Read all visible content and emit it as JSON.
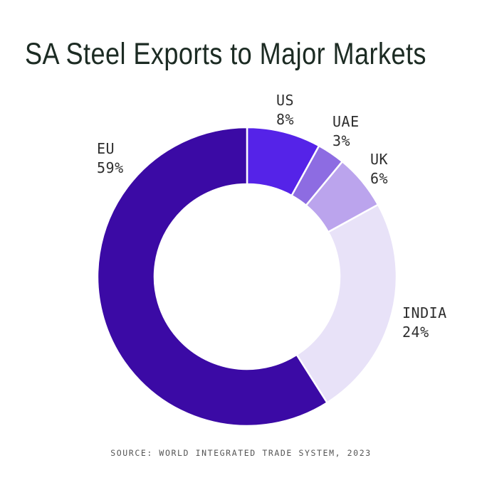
{
  "colors": {
    "background": "#FFFFFF",
    "title_text": "#1C2B23",
    "label_text": "#2E2E2E",
    "source_text": "#555555",
    "slice_divider": "#FFFFFF"
  },
  "chart_data": {
    "type": "pie",
    "variant": "donut",
    "title": "SA Steel Exports to Major Markets",
    "value_unit": "percent",
    "direction": "clockwise",
    "start_angle_deg": 0,
    "inner_radius_ratio": 0.62,
    "legend": "none",
    "slices": [
      {
        "label": "US",
        "value": 8,
        "display": "8%",
        "color": "#5523E8"
      },
      {
        "label": "UAE",
        "value": 3,
        "display": "3%",
        "color": "#8D6CE2"
      },
      {
        "label": "UK",
        "value": 6,
        "display": "6%",
        "color": "#BBA4ED"
      },
      {
        "label": "INDIA",
        "value": 24,
        "display": "24%",
        "color": "#E8E2F8"
      },
      {
        "label": "EU",
        "value": 59,
        "display": "59%",
        "color": "#3B0AA5"
      }
    ],
    "source": "SOURCE: WORLD INTEGRATED TRADE SYSTEM, 2023"
  }
}
